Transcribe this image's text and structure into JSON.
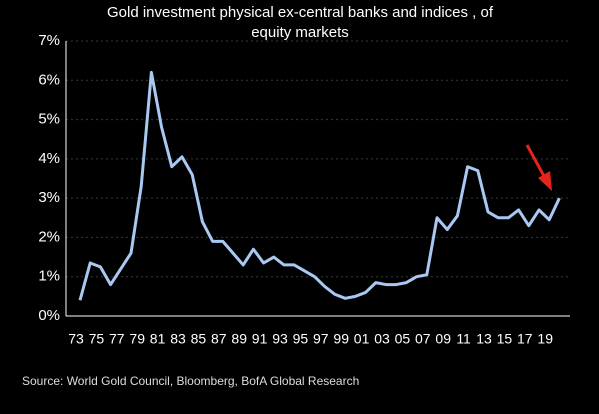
{
  "chart_data": {
    "type": "line",
    "title": [
      "Gold investment physical ex-central banks and indices , of",
      "equity markets"
    ],
    "source": "Source: World Gold Council, Bloomberg, BofA Global Research",
    "categories": [
      "73",
      null,
      "75",
      null,
      "77",
      null,
      "79",
      null,
      "81",
      null,
      "83",
      null,
      "85",
      null,
      "87",
      null,
      "89",
      null,
      "91",
      null,
      "93",
      null,
      "95",
      null,
      "97",
      null,
      "99",
      null,
      "01",
      null,
      "03",
      null,
      "05",
      null,
      "07",
      null,
      "09",
      null,
      "11",
      null,
      "13",
      null,
      "15",
      null,
      "17",
      null,
      "19",
      null
    ],
    "series": [
      {
        "color": "#a9c9f2",
        "values": [
          0.4,
          1.35,
          1.25,
          0.8,
          1.2,
          1.6,
          3.3,
          6.2,
          4.8,
          3.8,
          4.05,
          3.6,
          2.4,
          1.9,
          1.9,
          1.6,
          1.3,
          1.7,
          1.35,
          1.5,
          1.3,
          1.3,
          1.15,
          1.0,
          0.75,
          0.55,
          0.45,
          0.5,
          0.6,
          0.85,
          0.8,
          0.8,
          0.85,
          1.0,
          1.05,
          2.5,
          2.2,
          2.55,
          3.8,
          3.7,
          2.65,
          2.5,
          2.5,
          2.7,
          2.3,
          2.7,
          2.45,
          3.0
        ]
      }
    ],
    "ylim": [
      0,
      7
    ],
    "yticks": [
      {
        "value": 0,
        "label": "0%"
      },
      {
        "value": 1,
        "label": "1%"
      },
      {
        "value": 2,
        "label": "2%"
      },
      {
        "value": 3,
        "label": "3%"
      },
      {
        "value": 4,
        "label": "4%"
      },
      {
        "value": 5,
        "label": "5%"
      },
      {
        "value": 6,
        "label": "6%"
      },
      {
        "value": 7,
        "label": "7%"
      }
    ],
    "grid": true
  }
}
